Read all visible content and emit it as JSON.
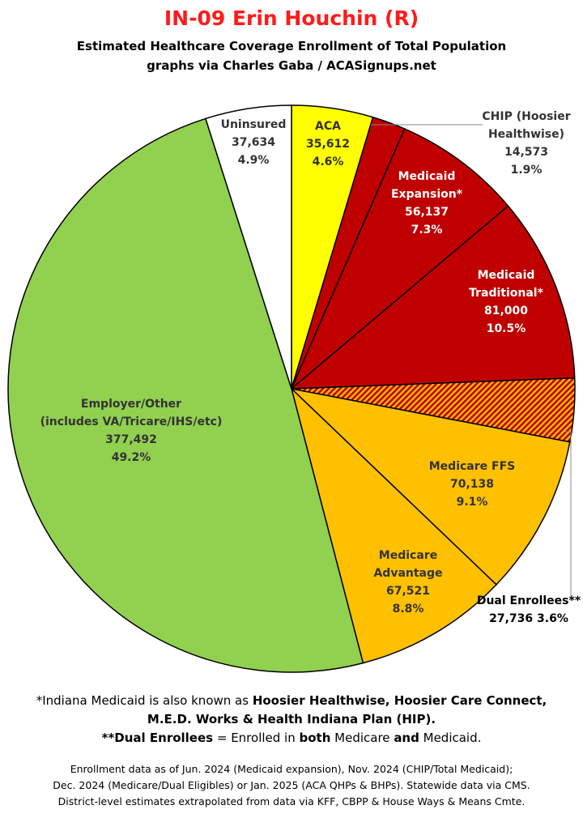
{
  "header": {
    "title": "IN-09 Erin Houchin (R)",
    "subtitle1": "Estimated Healthcare Coverage Enrollment of Total Population",
    "subtitle2": "graphs via Charles Gaba / ACASignups.net"
  },
  "chart_data": {
    "type": "pie",
    "title": "IN-09 Erin Houchin (R)",
    "slices": [
      {
        "label": "ACA",
        "value": 35612,
        "value_text": "35,612",
        "percent": "4.6%",
        "color": "#ffff00",
        "text_color": "#333333",
        "pattern": false
      },
      {
        "label": "CHIP (Hoosier Healthwise)",
        "label_lines": [
          "CHIP (Hoosier",
          "Healthwise)"
        ],
        "value": 14573,
        "value_text": "14,573",
        "percent": "1.9%",
        "color": "#c00000",
        "text_color": "#333333",
        "pattern": false
      },
      {
        "label": "Medicaid Expansion*",
        "label_lines": [
          "Medicaid",
          "Expansion*"
        ],
        "value": 56137,
        "value_text": "56,137",
        "percent": "7.3%",
        "color": "#c00000",
        "text_color": "#ffffff",
        "pattern": false
      },
      {
        "label": "Medicaid Traditional*",
        "label_lines": [
          "Medicaid",
          "Traditional*"
        ],
        "value": 81000,
        "value_text": "81,000",
        "percent": "10.5%",
        "color": "#c00000",
        "text_color": "#ffffff",
        "pattern": false
      },
      {
        "label": "Dual Enrollees**",
        "value": 27736,
        "value_text": "27,736",
        "percent": "3.6%",
        "color": "#c00000",
        "text_color": "#000000",
        "pattern": true
      },
      {
        "label": "Medicare FFS",
        "value": 70138,
        "value_text": "70,138",
        "percent": "9.1%",
        "color": "#ffc000",
        "text_color": "#333333",
        "pattern": false
      },
      {
        "label": "Medicare Advantage",
        "label_lines": [
          "Medicare",
          "Advantage"
        ],
        "value": 67521,
        "value_text": "67,521",
        "percent": "8.8%",
        "color": "#ffc000",
        "text_color": "#333333",
        "pattern": false
      },
      {
        "label": "Employer/Other (includes VA/Tricare/IHS/etc)",
        "label_lines": [
          "Employer/Other",
          "(includes VA/Tricare/IHS/etc)"
        ],
        "value": 377492,
        "value_text": "377,492",
        "percent": "49.2%",
        "color": "#92d050",
        "text_color": "#333333",
        "pattern": false
      },
      {
        "label": "Uninsured",
        "value": 37634,
        "value_text": "37,634",
        "percent": "4.9%",
        "color": "#ffffff",
        "text_color": "#333333",
        "pattern": false
      }
    ]
  },
  "footnotes": {
    "line1_a": "*Indiana Medicaid is also known as ",
    "line1_b": "Hoosier Healthwise, Hoosier Care Connect,",
    "line2": "M.E.D. Works & Health Indiana Plan (HIP).",
    "line3_a": "**Dual Enrollees",
    "line3_b": " = Enrolled in ",
    "line3_c": "both",
    "line3_d": " Medicare ",
    "line3_e": "and",
    "line3_f": " Medicaid."
  },
  "source": {
    "line1": "Enrollment data as of Jun. 2024 (Medicaid expansion), Nov. 2024 (CHIP/Total Medicaid);",
    "line2": "Dec. 2024 (Medicare/Dual Eligibles) or Jan. 2025 (ACA QHPs & BHPs). Statewide data via CMS.",
    "line3": "District-level estimates extrapolated from data via KFF, CBPP & House Ways & Means Cmte."
  }
}
